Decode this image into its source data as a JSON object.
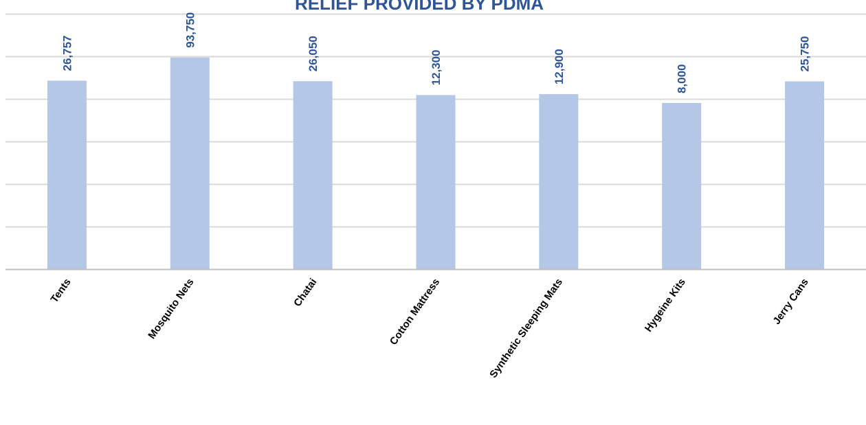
{
  "colors": {
    "bar": "#b4c7e7",
    "label": "#2f5597",
    "title": "#2f5597",
    "tick": "#000000",
    "grid": "#d9d9d9",
    "axis": "#bfbfbf"
  },
  "chart_data": {
    "type": "bar",
    "title": "RELIEF PROVIDED BY PDMA",
    "xlabel": "",
    "ylabel": "",
    "categories": [
      "Tents",
      "Mosquito Nets",
      "Chatai",
      "Cotton Mattress",
      "Synthetic Sleeping Mats",
      "Hygeine Kits",
      "Jerry Cans"
    ],
    "values": [
      26757,
      93750,
      26050,
      12300,
      12900,
      8000,
      25750
    ],
    "data_labels": [
      "26,757",
      "93,750",
      "26,050",
      "12,300",
      "12,900",
      "8,000",
      "25,750"
    ],
    "y_scale": "log",
    "ylim": [
      1,
      1000000
    ],
    "y_axis_labels_visible": false,
    "grid": true,
    "legend": "none"
  }
}
